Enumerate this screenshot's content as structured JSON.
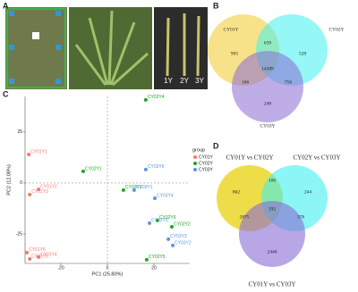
{
  "panels": {
    "a": "A",
    "b": "B",
    "c": "C",
    "d": "D"
  },
  "photo": {
    "ages": [
      "1Y",
      "2Y",
      "3Y"
    ]
  },
  "venn_b": {
    "sets": [
      "CY01Y",
      "CY02Y",
      "CY03Y"
    ],
    "only_1": 905,
    "one_two": 639,
    "only_2": 528,
    "all": 14389,
    "one_three": 166,
    "two_three": 756,
    "only_3": 248
  },
  "venn_d": {
    "sets": [
      "CY01Y vs CY02Y",
      "CY02Y vs CY03Y",
      "CY01Y vs CY03Y"
    ],
    "only_1": 862,
    "one_two": 106,
    "only_2": 244,
    "all": 192,
    "one_three": 2875,
    "two_three": 378,
    "only_3": 2446
  },
  "chart_data": {
    "type": "scatter",
    "xlabel": "PC1 (25.80%)",
    "ylabel": "PC2 (12.08%)",
    "legend_title": "group",
    "xlim": [
      -35.4,
      35.4
    ],
    "ylim": [
      -39.5,
      42.5
    ],
    "xticks": [
      -20,
      0,
      20
    ],
    "yticks": [
      -25,
      0,
      25
    ],
    "zero_lines": true,
    "series": [
      {
        "name": "CY01Y",
        "color": "#f07a72",
        "x": [
          -33.8,
          -29.6,
          -33.4,
          -34.6,
          -29.6,
          -33.4
        ],
        "y": [
          14.0,
          -3.1,
          -5.7,
          -34.2,
          -36.4,
          -37.3
        ],
        "labels": [
          "CY01Y1",
          "CY01Y2",
          "CY01Y3",
          "CY01Y6",
          "CY01Y4",
          "CY01Y5"
        ]
      },
      {
        "name": "CY02Y",
        "color": "#1ea51e",
        "x": [
          16.5,
          -10.4,
          6.9,
          21.5,
          27.7,
          16.9
        ],
        "y": [
          40.8,
          5.7,
          -3.5,
          -18.4,
          -21.5,
          -37.7
        ],
        "labels": [
          "CY02Y4",
          "CY02Y1",
          "CY02Y3",
          "CY02Y6",
          "CY02Y2",
          "CY02Y5"
        ]
      },
      {
        "name": "CY03Y",
        "color": "#5c95e0",
        "x": [
          16.5,
          11.5,
          20.4,
          18.1,
          26.2,
          28.1
        ],
        "y": [
          6.6,
          -3.5,
          -7.5,
          -19.7,
          -27.6,
          -30.7
        ],
        "labels": [
          "CY03Y6",
          "CY03Y1",
          "CY03Y4",
          "CY03Y5",
          "CY03Y3",
          "CY03Y2"
        ]
      }
    ]
  }
}
